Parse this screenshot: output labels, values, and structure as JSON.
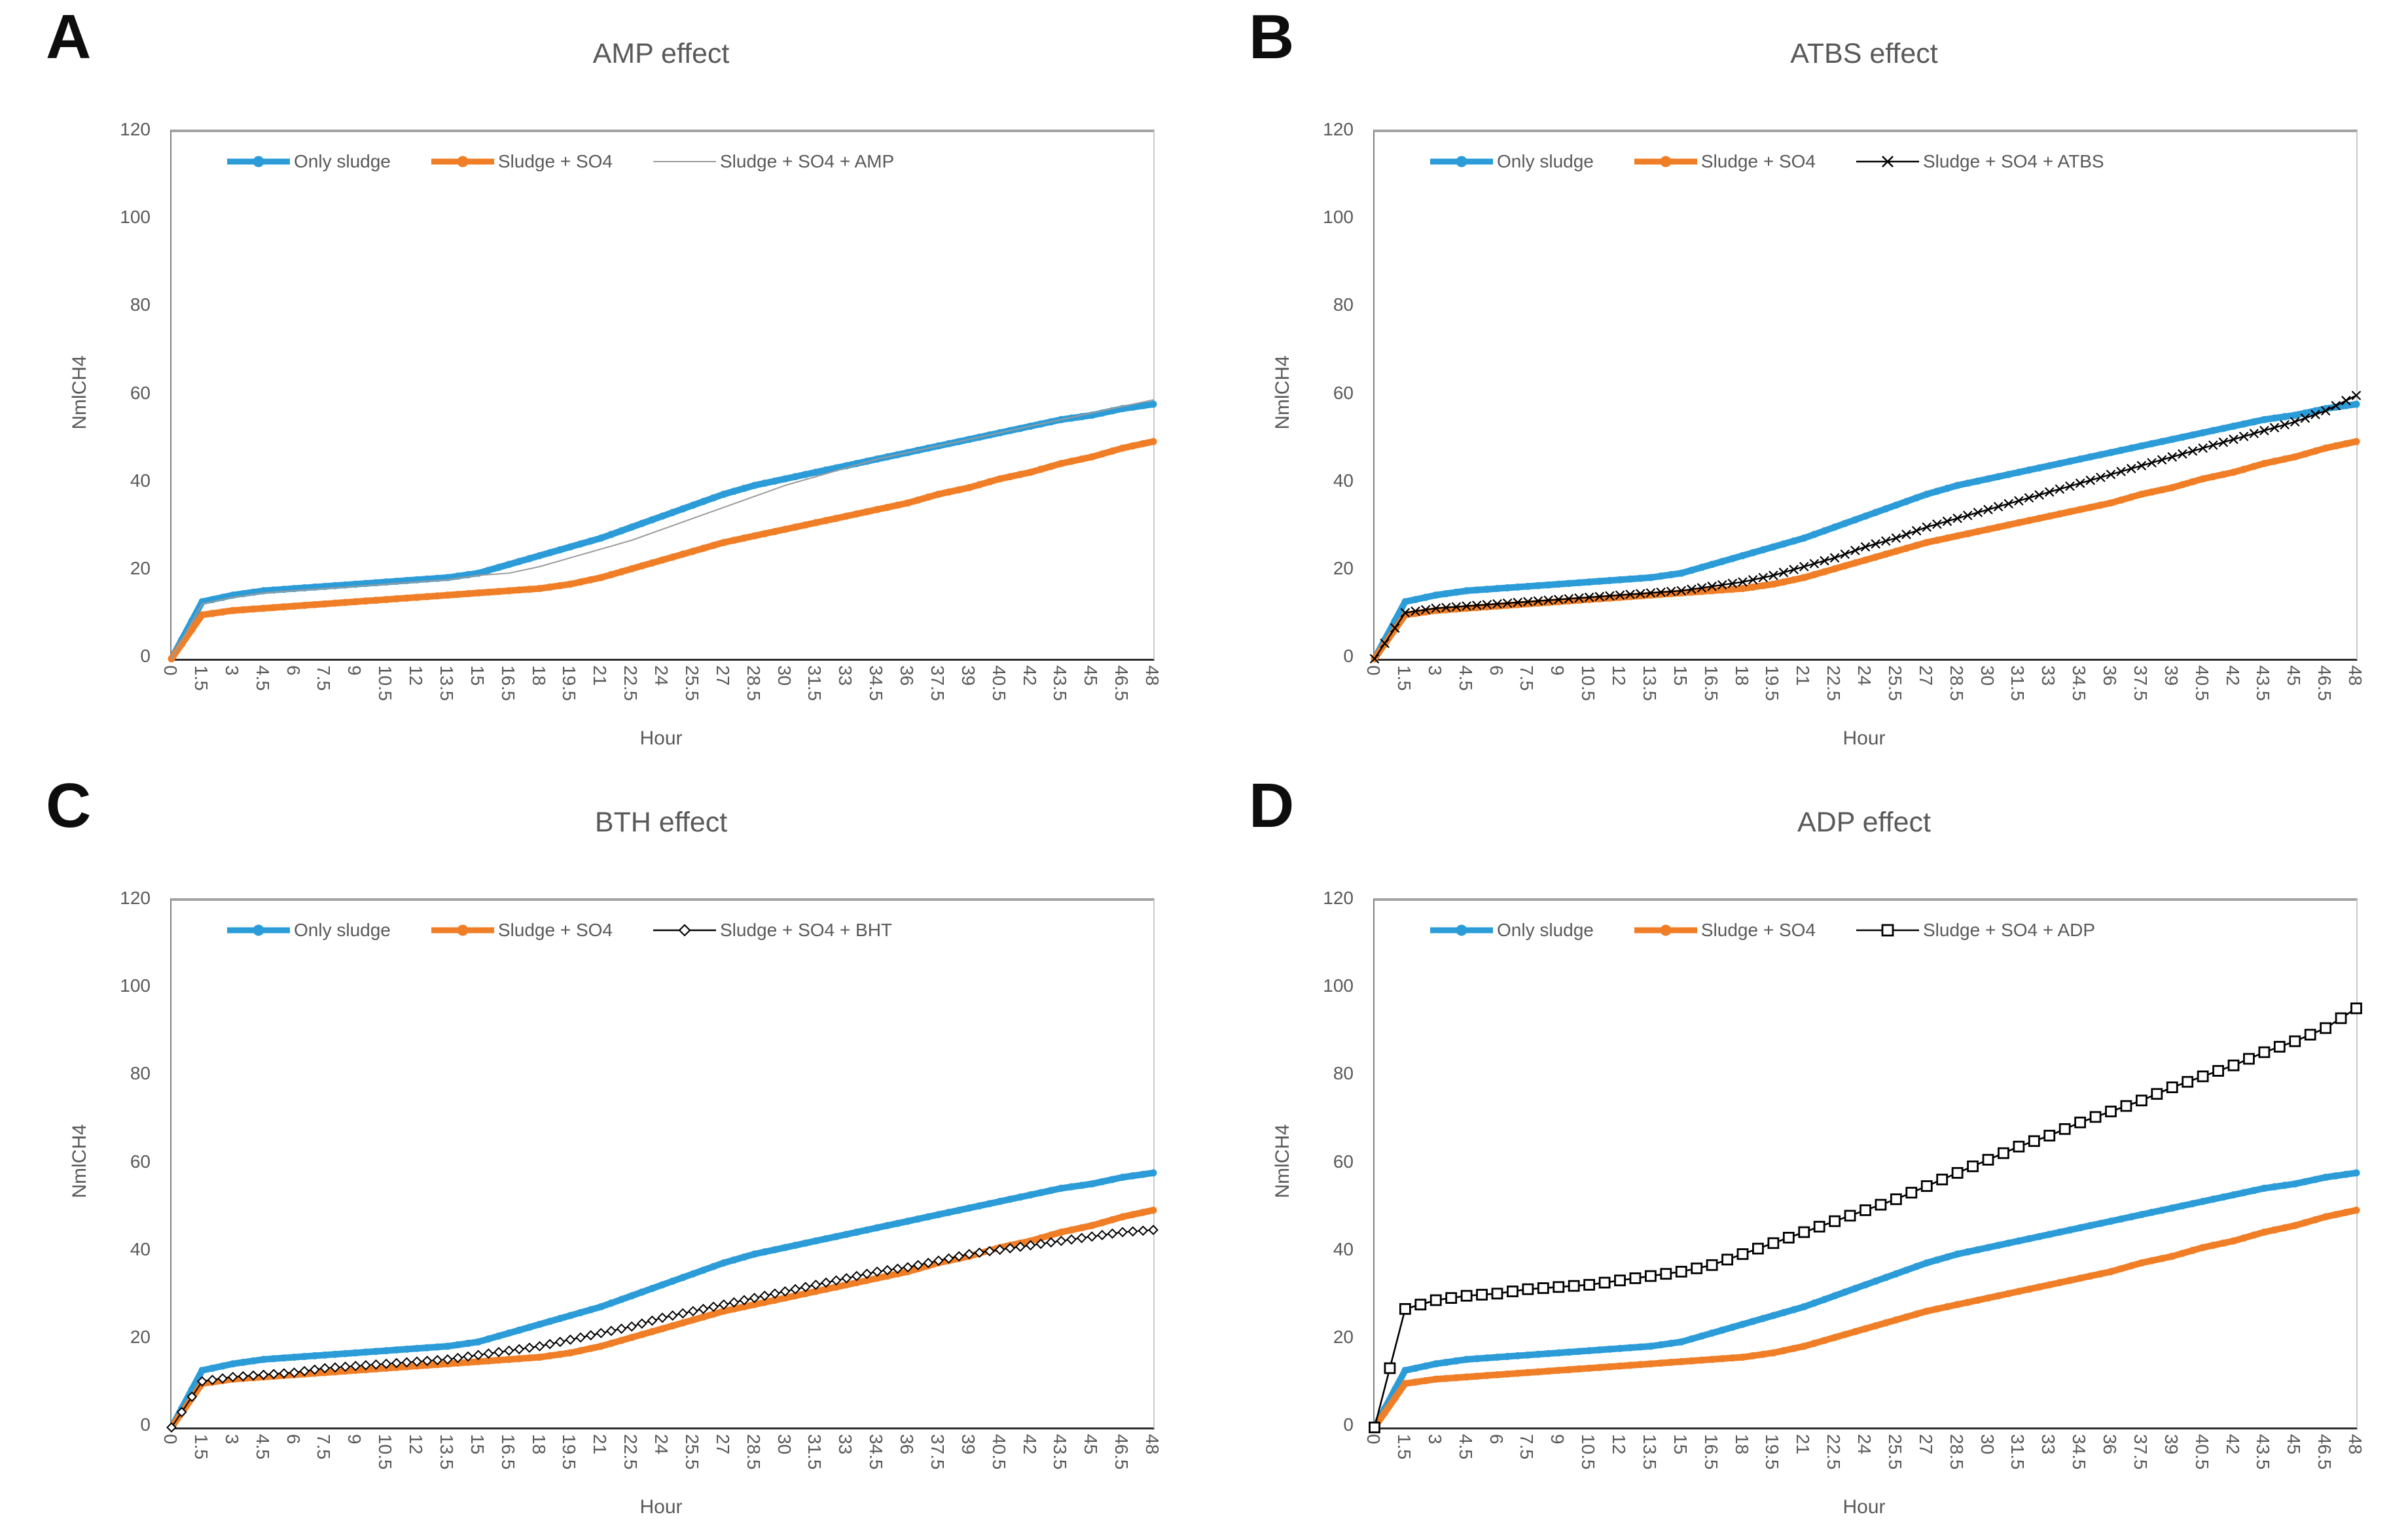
{
  "figure": {
    "background": "#ffffff",
    "text_color": "#595959",
    "axis_color_left": "#7f7f7f",
    "axis_color_bottom": "#2e2e2e",
    "border_color": "#a3a3a3"
  },
  "chart_data": [
    {
      "type": "line",
      "panel_letter": "A",
      "title": "AMP effect",
      "xlabel": "Hour",
      "ylabel": "NmlCH4",
      "ylim": [
        0,
        120
      ],
      "y_ticks": [
        "0",
        "20",
        "40",
        "60",
        "80",
        "100",
        "120"
      ],
      "grid": false,
      "legend_position": "top-inside",
      "categories": [
        "0",
        "1.5",
        "3",
        "4.5",
        "6",
        "7.5",
        "9",
        "10.5",
        "12",
        "13.5",
        "15",
        "16.5",
        "18",
        "19.5",
        "21",
        "22.5",
        "24",
        "25.5",
        "27",
        "28.5",
        "30",
        "31.5",
        "33",
        "34.5",
        "36",
        "37.5",
        "39",
        "40.5",
        "42",
        "43.5",
        "45",
        "46.5",
        "48"
      ],
      "series": [
        {
          "name": "Only sludge",
          "color": "#2b9cd8",
          "marker": "circle",
          "values": [
            0,
            13,
            14.5,
            15.5,
            16,
            16.5,
            17,
            17.5,
            18,
            18.5,
            19.5,
            21.5,
            23.5,
            25.5,
            27.5,
            30,
            32.5,
            35,
            37.5,
            39.5,
            41,
            42.5,
            44,
            45.5,
            47,
            48.5,
            50,
            51.5,
            53,
            54.5,
            55.5,
            57,
            58
          ]
        },
        {
          "name": "Sludge + SO4",
          "color": "#f07e26",
          "marker": "circle",
          "values": [
            0,
            10,
            11,
            11.5,
            12,
            12.5,
            13,
            13.5,
            14,
            14.5,
            15,
            15.5,
            16,
            17,
            18.5,
            20.5,
            22.5,
            24.5,
            26.5,
            28,
            29.5,
            31,
            32.5,
            34,
            35.5,
            37.5,
            39,
            41,
            42.5,
            44.5,
            46,
            48,
            49.5
          ]
        },
        {
          "name": "Sludge + SO4 + AMP",
          "color": "#9b9b9b",
          "marker": "none",
          "values": [
            0,
            12.5,
            14,
            15,
            15.5,
            16,
            16.5,
            17,
            17.5,
            18,
            19,
            19.5,
            21,
            23,
            25,
            27,
            29.5,
            32,
            34.5,
            37,
            39.5,
            41.5,
            43.5,
            45.5,
            47,
            48.5,
            50,
            51.5,
            53,
            54.5,
            56,
            57.5,
            59
          ]
        }
      ]
    },
    {
      "type": "line",
      "panel_letter": "B",
      "title": "ATBS effect",
      "xlabel": "Hour",
      "ylabel": "NmlCH4",
      "ylim": [
        0,
        120
      ],
      "y_ticks": [
        "0",
        "20",
        "40",
        "60",
        "80",
        "100",
        "120"
      ],
      "grid": false,
      "legend_position": "top-inside",
      "categories": [
        "0",
        "1.5",
        "3",
        "4.5",
        "6",
        "7.5",
        "9",
        "10.5",
        "12",
        "13.5",
        "15",
        "16.5",
        "18",
        "19.5",
        "21",
        "22.5",
        "24",
        "25.5",
        "27",
        "28.5",
        "30",
        "31.5",
        "33",
        "34.5",
        "36",
        "37.5",
        "39",
        "40.5",
        "42",
        "43.5",
        "45",
        "46.5",
        "48"
      ],
      "series": [
        {
          "name": "Only sludge",
          "color": "#2b9cd8",
          "marker": "circle",
          "values": [
            0,
            13,
            14.5,
            15.5,
            16,
            16.5,
            17,
            17.5,
            18,
            18.5,
            19.5,
            21.5,
            23.5,
            25.5,
            27.5,
            30,
            32.5,
            35,
            37.5,
            39.5,
            41,
            42.5,
            44,
            45.5,
            47,
            48.5,
            50,
            51.5,
            53,
            54.5,
            55.5,
            57,
            58
          ]
        },
        {
          "name": "Sludge + SO4",
          "color": "#f07e26",
          "marker": "circle",
          "values": [
            0,
            10,
            11,
            11.5,
            12,
            12.5,
            13,
            13.5,
            14,
            14.5,
            15,
            15.5,
            16,
            17,
            18.5,
            20.5,
            22.5,
            24.5,
            26.5,
            28,
            29.5,
            31,
            32.5,
            34,
            35.5,
            37.5,
            39,
            41,
            42.5,
            44.5,
            46,
            48,
            49.5
          ]
        },
        {
          "name": "Sludge + SO4 + ATBS",
          "color": "#000000",
          "marker": "x",
          "values": [
            0,
            10.5,
            11.5,
            12,
            12.5,
            13,
            13.5,
            14,
            14.5,
            15,
            15.5,
            16.5,
            17.5,
            19,
            21,
            23,
            25.5,
            27.5,
            30,
            32,
            34,
            36,
            38,
            40,
            42,
            44,
            46,
            48,
            50,
            52,
            54,
            56.5,
            60
          ]
        }
      ]
    },
    {
      "type": "line",
      "panel_letter": "C",
      "title": "BTH effect",
      "xlabel": "Hour",
      "ylabel": "NmlCH4",
      "ylim": [
        0,
        120
      ],
      "y_ticks": [
        "0",
        "20",
        "40",
        "60",
        "80",
        "100",
        "120"
      ],
      "grid": false,
      "legend_position": "top-inside",
      "categories": [
        "0",
        "1.5",
        "3",
        "4.5",
        "6",
        "7.5",
        "9",
        "10.5",
        "12",
        "13.5",
        "15",
        "16.5",
        "18",
        "19.5",
        "21",
        "22.5",
        "24",
        "25.5",
        "27",
        "28.5",
        "30",
        "31.5",
        "33",
        "34.5",
        "36",
        "37.5",
        "39",
        "40.5",
        "42",
        "43.5",
        "45",
        "46.5",
        "48"
      ],
      "series": [
        {
          "name": "Only sludge",
          "color": "#2b9cd8",
          "marker": "circle",
          "values": [
            0,
            13,
            14.5,
            15.5,
            16,
            16.5,
            17,
            17.5,
            18,
            18.5,
            19.5,
            21.5,
            23.5,
            25.5,
            27.5,
            30,
            32.5,
            35,
            37.5,
            39.5,
            41,
            42.5,
            44,
            45.5,
            47,
            48.5,
            50,
            51.5,
            53,
            54.5,
            55.5,
            57,
            58
          ]
        },
        {
          "name": "Sludge + SO4",
          "color": "#f07e26",
          "marker": "circle",
          "values": [
            0,
            10,
            11,
            11.5,
            12,
            12.5,
            13,
            13.5,
            14,
            14.5,
            15,
            15.5,
            16,
            17,
            18.5,
            20.5,
            22.5,
            24.5,
            26.5,
            28,
            29.5,
            31,
            32.5,
            34,
            35.5,
            37.5,
            39,
            41,
            42.5,
            44.5,
            46,
            48,
            49.5
          ]
        },
        {
          "name": "Sludge + SO4 + BHT",
          "color": "#000000",
          "marker": "diamond",
          "values": [
            0,
            10.5,
            11.5,
            12,
            12.5,
            13.5,
            14,
            14.5,
            15,
            15.5,
            16.5,
            17.5,
            18.5,
            20,
            21.5,
            23,
            25,
            26.5,
            28,
            29.5,
            31,
            32.5,
            34,
            35.5,
            36.5,
            38,
            39.5,
            40.5,
            41.5,
            42.5,
            43.5,
            44.5,
            45
          ]
        }
      ]
    },
    {
      "type": "line",
      "panel_letter": "D",
      "title": "ADP effect",
      "xlabel": "Hour",
      "ylabel": "NmlCH4",
      "ylim": [
        0,
        120
      ],
      "y_ticks": [
        "0",
        "20",
        "40",
        "60",
        "80",
        "100",
        "120"
      ],
      "grid": false,
      "legend_position": "top-inside",
      "categories": [
        "0",
        "1.5",
        "3",
        "4.5",
        "6",
        "7.5",
        "9",
        "10.5",
        "12",
        "13.5",
        "15",
        "16.5",
        "18",
        "19.5",
        "21",
        "22.5",
        "24",
        "25.5",
        "27",
        "28.5",
        "30",
        "31.5",
        "33",
        "34.5",
        "36",
        "37.5",
        "39",
        "40.5",
        "42",
        "43.5",
        "45",
        "46.5",
        "48"
      ],
      "series": [
        {
          "name": "Only sludge",
          "color": "#2b9cd8",
          "marker": "circle",
          "values": [
            0,
            13,
            14.5,
            15.5,
            16,
            16.5,
            17,
            17.5,
            18,
            18.5,
            19.5,
            21.5,
            23.5,
            25.5,
            27.5,
            30,
            32.5,
            35,
            37.5,
            39.5,
            41,
            42.5,
            44,
            45.5,
            47,
            48.5,
            50,
            51.5,
            53,
            54.5,
            55.5,
            57,
            58
          ]
        },
        {
          "name": "Sludge + SO4",
          "color": "#f07e26",
          "marker": "circle",
          "values": [
            0,
            10,
            11,
            11.5,
            12,
            12.5,
            13,
            13.5,
            14,
            14.5,
            15,
            15.5,
            16,
            17,
            18.5,
            20.5,
            22.5,
            24.5,
            26.5,
            28,
            29.5,
            31,
            32.5,
            34,
            35.5,
            37.5,
            39,
            41,
            42.5,
            44.5,
            46,
            48,
            49.5
          ]
        },
        {
          "name": "Sludge + SO4 + ADP",
          "color": "#000000",
          "marker": "square",
          "values": [
            0,
            27,
            29,
            30,
            30.5,
            31.5,
            32,
            32.5,
            33.5,
            34.5,
            35.5,
            37,
            39.5,
            42,
            44.5,
            47,
            49.5,
            52,
            55,
            58,
            61,
            64,
            66.5,
            69.5,
            72,
            74.5,
            77.5,
            80,
            82.5,
            85.5,
            88,
            91,
            95.5
          ]
        }
      ]
    }
  ]
}
